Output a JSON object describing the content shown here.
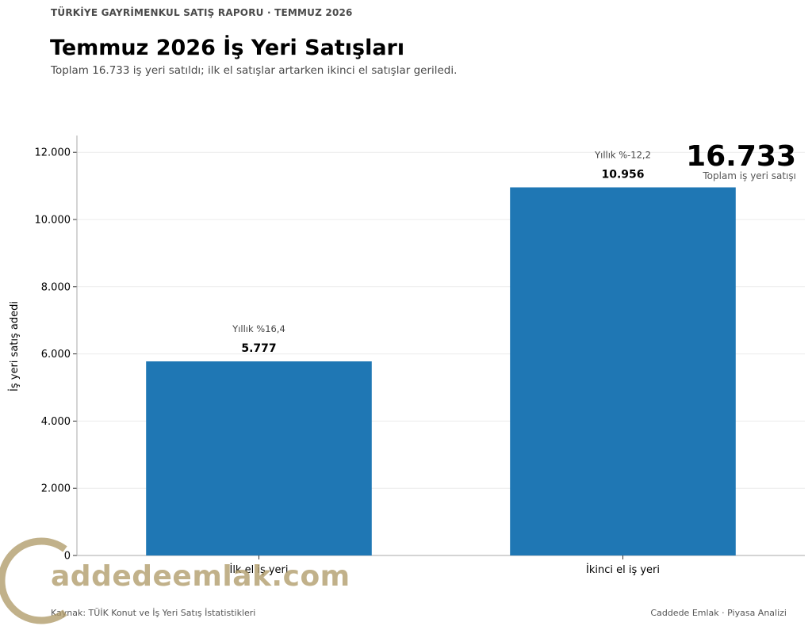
{
  "header": {
    "kicker": "TÜRKİYE GAYRİMENKUL SATIŞ RAPORU · TEMMUZ 2026",
    "title": "Temmuz 2026 İş Yeri Satışları",
    "subtitle": "Toplam 16.733 iş yeri satıldı; ilk el satışlar artarken ikinci el satışlar geriledi."
  },
  "chart_data": {
    "type": "bar",
    "categories": [
      "İlk el iş yeri",
      "İkinci el iş yeri"
    ],
    "values": [
      5777,
      10956
    ],
    "value_labels": [
      "5.777",
      "10.956"
    ],
    "change_labels": [
      "Yıllık %16,4",
      "Yıllık %-12,2"
    ],
    "ylabel": "İş yeri satış adedi",
    "ylim": [
      0,
      12500
    ],
    "yticks": [
      0,
      2000,
      4000,
      6000,
      8000,
      10000,
      12000
    ],
    "ytick_labels": [
      "0",
      "2.000",
      "4.000",
      "6.000",
      "8.000",
      "10.000",
      "12.000"
    ],
    "grid": true,
    "bar_color": "#1f77b4"
  },
  "highlight": {
    "value": "16.733",
    "label": "Toplam iş yeri satışı"
  },
  "footer": {
    "source": "Kaynak: TÜİK Konut ve İş Yeri Satış İstatistikleri",
    "brand": "Caddede Emlak · Piyasa Analizi"
  },
  "watermark": {
    "text": "addedeemlak.com"
  }
}
